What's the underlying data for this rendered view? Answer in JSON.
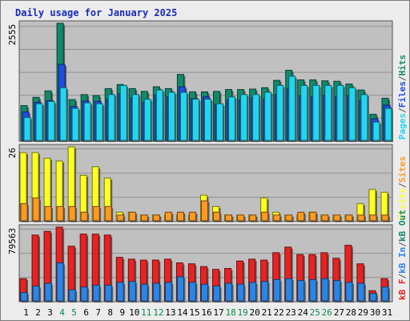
{
  "title": "Daily usage for January 2025",
  "colors": {
    "background": "#ececec",
    "panel": "#c0c0c0",
    "hits": "#118a6a",
    "files": "#1f4de0",
    "pages": "#22d6f0",
    "visits": "#ffff22",
    "sites": "#ff9922",
    "kbf": "#e82222",
    "kbin": "#2a86e6",
    "kbout": "#118a6a",
    "weekend": "#0a8a4a",
    "weekday": "#000000"
  },
  "chart_data": [
    {
      "type": "bar",
      "panel": "hits-files-pages",
      "ymax_label": "2555",
      "ymax": 2555,
      "legend": [
        "Pages",
        "/",
        "Files",
        "/",
        "Hits"
      ],
      "categories": [
        "1",
        "2",
        "3",
        "4",
        "5",
        "6",
        "7",
        "8",
        "9",
        "10",
        "11",
        "12",
        "13",
        "14",
        "15",
        "16",
        "17",
        "18",
        "19",
        "20",
        "21",
        "22",
        "23",
        "24",
        "25",
        "26",
        "27",
        "28",
        "29",
        "30",
        "31"
      ],
      "weekend_days": [
        "4",
        "5",
        "11",
        "12",
        "18",
        "19",
        "25",
        "26"
      ],
      "series": [
        {
          "key": "hits",
          "values": [
            760,
            940,
            1080,
            2555,
            890,
            1000,
            980,
            1130,
            1220,
            1130,
            1070,
            1170,
            1130,
            1440,
            1060,
            1060,
            1070,
            1110,
            1110,
            1120,
            1150,
            1310,
            1530,
            1320,
            1320,
            1300,
            1290,
            1230,
            1100,
            570,
            920
          ]
        },
        {
          "key": "files",
          "values": [
            620,
            830,
            870,
            1660,
            740,
            860,
            850,
            900,
            1020,
            930,
            830,
            990,
            950,
            1170,
            910,
            950,
            790,
            880,
            880,
            930,
            900,
            1000,
            1130,
            980,
            950,
            990,
            960,
            980,
            870,
            470,
            770
          ]
        },
        {
          "key": "pages",
          "values": [
            500,
            800,
            850,
            1150,
            700,
            820,
            800,
            1000,
            1200,
            1000,
            900,
            1100,
            1050,
            1050,
            900,
            900,
            800,
            950,
            1000,
            1000,
            1050,
            1200,
            1400,
            1200,
            1200,
            1200,
            1200,
            1150,
            1000,
            400,
            700
          ]
        }
      ]
    },
    {
      "type": "bar",
      "panel": "visits-sites",
      "ymax_label": "26",
      "ymax": 26,
      "legend": [
        "Visits",
        "/",
        "Sites"
      ],
      "categories": [
        "1",
        "2",
        "3",
        "4",
        "5",
        "6",
        "7",
        "8",
        "9",
        "10",
        "11",
        "12",
        "13",
        "14",
        "15",
        "16",
        "17",
        "18",
        "19",
        "20",
        "21",
        "22",
        "23",
        "24",
        "25",
        "26",
        "27",
        "28",
        "29",
        "30",
        "31"
      ],
      "series": [
        {
          "key": "visits",
          "values": [
            24,
            24,
            22,
            21,
            26,
            16,
            19,
            15,
            3,
            3,
            2,
            2,
            2,
            2,
            2,
            9,
            5,
            2,
            2,
            2,
            8,
            3,
            2,
            2,
            3,
            2,
            2,
            2,
            6,
            11,
            10
          ]
        },
        {
          "key": "sites",
          "values": [
            6,
            8,
            5,
            5,
            5,
            3,
            5,
            5,
            2,
            3,
            2,
            2,
            3,
            3,
            3,
            7,
            3,
            2,
            2,
            2,
            3,
            2,
            2,
            3,
            3,
            2,
            2,
            2,
            2,
            2,
            2
          ]
        }
      ]
    },
    {
      "type": "bar",
      "panel": "kbytes",
      "ymax_label": "79563",
      "ymax": 79563,
      "legend": [
        "kB F",
        "/",
        "kB In",
        "/",
        "kB Out"
      ],
      "categories": [
        "1",
        "2",
        "3",
        "4",
        "5",
        "6",
        "7",
        "8",
        "9",
        "10",
        "11",
        "12",
        "13",
        "14",
        "15",
        "16",
        "17",
        "18",
        "19",
        "20",
        "21",
        "22",
        "23",
        "24",
        "25",
        "26",
        "27",
        "28",
        "29",
        "30",
        "31"
      ],
      "series": [
        {
          "key": "kbf",
          "values": [
            24000,
            71000,
            75000,
            79563,
            59000,
            72000,
            72000,
            71000,
            47000,
            45000,
            44000,
            44000,
            45000,
            41000,
            40000,
            37000,
            34000,
            35000,
            43000,
            45000,
            44000,
            52000,
            58000,
            50000,
            50000,
            52000,
            46000,
            60000,
            40000,
            11000,
            24000
          ]
        },
        {
          "key": "kbin",
          "values": [
            9000,
            16000,
            19000,
            41000,
            12000,
            15000,
            17000,
            17000,
            20000,
            21000,
            18000,
            19000,
            20000,
            26000,
            20000,
            18000,
            16000,
            19000,
            18000,
            20000,
            21000,
            23000,
            24000,
            22000,
            23000,
            24000,
            22000,
            20000,
            19000,
            8000,
            15000
          ]
        }
      ]
    }
  ]
}
